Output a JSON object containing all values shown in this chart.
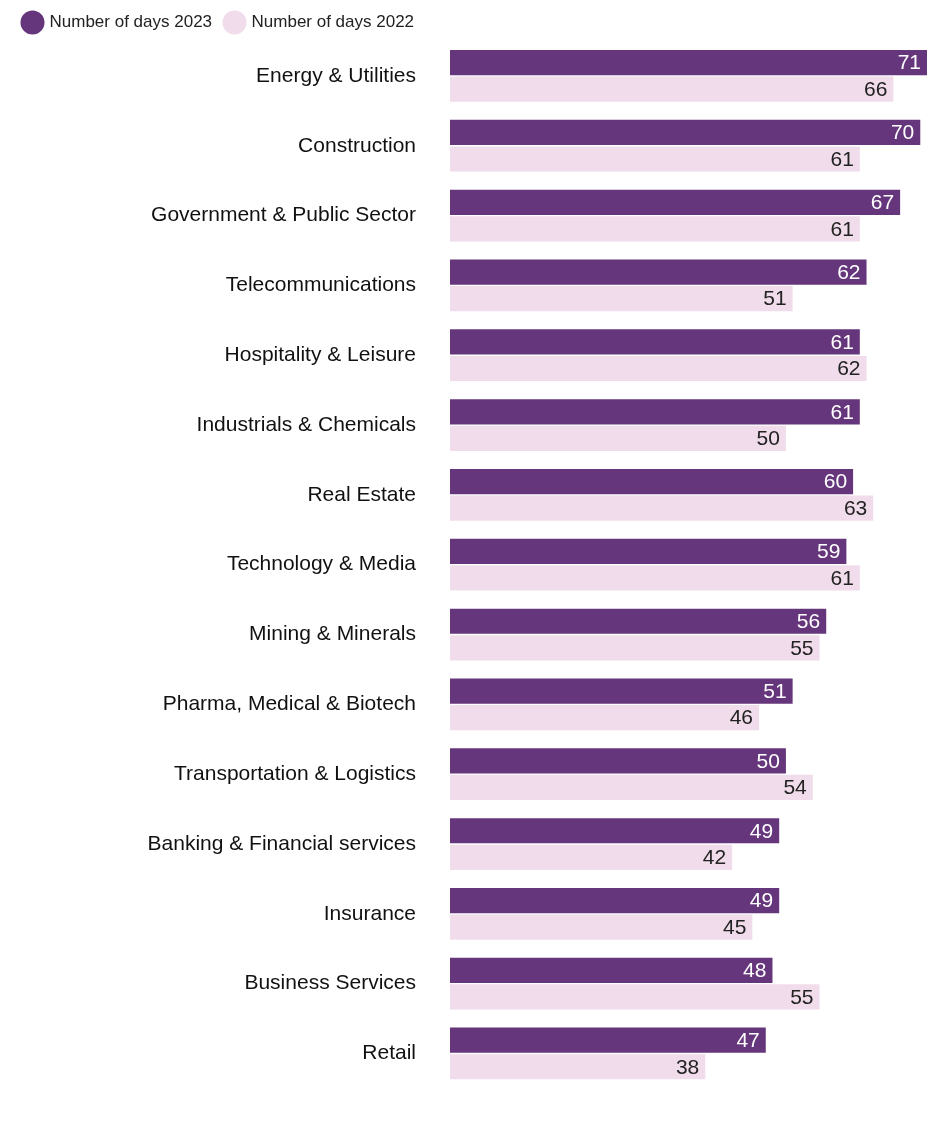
{
  "chart_data": {
    "type": "bar",
    "orientation": "horizontal",
    "categories": [
      "Energy & Utilities",
      "Construction",
      "Government & Public Sector",
      "Telecommunications",
      "Hospitality & Leisure",
      "Industrials & Chemicals",
      "Real Estate",
      "Technology & Media",
      "Mining & Minerals",
      "Pharma, Medical & Biotech",
      "Transportation & Logistics",
      "Banking & Financial services",
      "Insurance",
      "Business Services",
      "Retail"
    ],
    "series": [
      {
        "name": "Number of days 2023",
        "color": "#66367c",
        "values": [
          71,
          70,
          67,
          62,
          61,
          61,
          60,
          59,
          56,
          51,
          50,
          49,
          49,
          48,
          47
        ]
      },
      {
        "name": "Number of days 2022",
        "color": "#f0dcea",
        "values": [
          66,
          61,
          61,
          51,
          62,
          50,
          63,
          61,
          55,
          46,
          54,
          42,
          45,
          55,
          38
        ]
      }
    ],
    "xlim": [
      0,
      71
    ],
    "tick_labels": "y",
    "grid": false,
    "legend": "top left",
    "data_labels": true
  }
}
